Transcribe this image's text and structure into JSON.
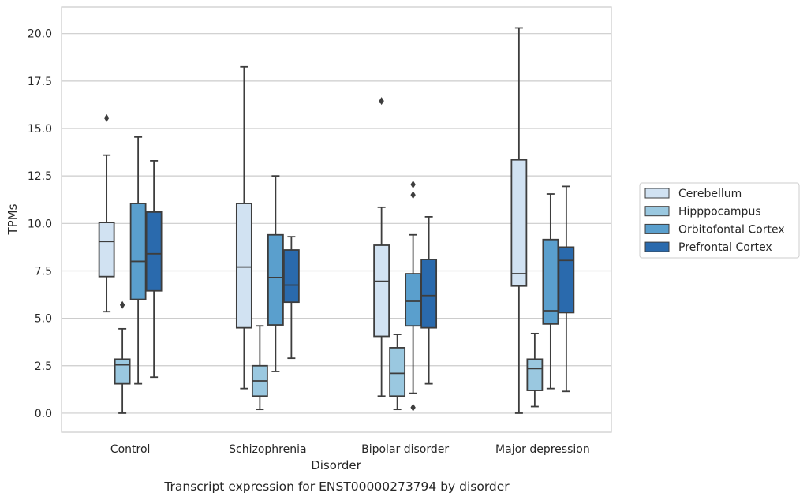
{
  "chart_data": {
    "type": "boxplot",
    "title": "",
    "caption": "Transcript expression for ENST00000273794 by disorder",
    "xlabel": "Disorder",
    "ylabel": "TPMs",
    "ylim": [
      -1.0,
      21.4
    ],
    "yticks": [
      0.0,
      2.5,
      5.0,
      7.5,
      10.0,
      12.5,
      15.0,
      17.5,
      20.0
    ],
    "ytick_labels": [
      "0.0",
      "2.5",
      "5.0",
      "7.5",
      "10.0",
      "12.5",
      "15.0",
      "17.5",
      "20.0"
    ],
    "categories": [
      "Control",
      "Schizophrenia",
      "Bipolar disorder",
      "Major depression"
    ],
    "grid": "horizontal",
    "legend_position": "right",
    "series": [
      {
        "name": "Cerebellum",
        "color": "#d1e2f2",
        "boxes": [
          {
            "whislo": 5.35,
            "q1": 7.2,
            "med": 9.05,
            "q3": 10.05,
            "whishi": 13.6,
            "fliers": [
              15.55
            ]
          },
          {
            "whislo": 1.3,
            "q1": 4.5,
            "med": 7.7,
            "q3": 11.05,
            "whishi": 18.25,
            "fliers": []
          },
          {
            "whislo": 0.9,
            "q1": 4.05,
            "med": 6.95,
            "q3": 8.85,
            "whishi": 10.85,
            "fliers": [
              16.45
            ]
          },
          {
            "whislo": 0.0,
            "q1": 6.7,
            "med": 7.35,
            "q3": 13.35,
            "whishi": 20.3,
            "fliers": []
          }
        ]
      },
      {
        "name": "Hipppocampus",
        "color": "#9ac8e0",
        "boxes": [
          {
            "whislo": 0.0,
            "q1": 1.55,
            "med": 2.55,
            "q3": 2.85,
            "whishi": 4.45,
            "fliers": [
              5.7
            ]
          },
          {
            "whislo": 0.2,
            "q1": 0.9,
            "med": 1.7,
            "q3": 2.5,
            "whishi": 4.6,
            "fliers": []
          },
          {
            "whislo": 0.2,
            "q1": 0.9,
            "med": 2.1,
            "q3": 3.45,
            "whishi": 4.15,
            "fliers": []
          },
          {
            "whislo": 0.35,
            "q1": 1.2,
            "med": 2.35,
            "q3": 2.85,
            "whishi": 4.2,
            "fliers": []
          }
        ]
      },
      {
        "name": "Orbitofontal Cortex",
        "color": "#5a9fcd",
        "boxes": [
          {
            "whislo": 1.55,
            "q1": 6.0,
            "med": 8.0,
            "q3": 11.05,
            "whishi": 14.55,
            "fliers": []
          },
          {
            "whislo": 2.2,
            "q1": 4.65,
            "med": 7.15,
            "q3": 9.4,
            "whishi": 12.5,
            "fliers": []
          },
          {
            "whislo": 1.05,
            "q1": 4.6,
            "med": 5.9,
            "q3": 7.35,
            "whishi": 9.4,
            "fliers": [
              12.05,
              11.5,
              0.3
            ]
          },
          {
            "whislo": 1.3,
            "q1": 4.7,
            "med": 5.4,
            "q3": 9.15,
            "whishi": 11.55,
            "fliers": []
          }
        ]
      },
      {
        "name": "Prefrontal Cortex",
        "color": "#2a6aad",
        "boxes": [
          {
            "whislo": 1.9,
            "q1": 6.45,
            "med": 8.4,
            "q3": 10.6,
            "whishi": 13.3,
            "fliers": []
          },
          {
            "whislo": 2.9,
            "q1": 5.85,
            "med": 6.75,
            "q3": 8.6,
            "whishi": 9.3,
            "fliers": []
          },
          {
            "whislo": 1.55,
            "q1": 4.5,
            "med": 6.2,
            "q3": 8.1,
            "whishi": 10.35,
            "fliers": []
          },
          {
            "whislo": 1.15,
            "q1": 5.3,
            "med": 8.05,
            "q3": 8.75,
            "whishi": 11.95,
            "fliers": []
          }
        ]
      }
    ]
  }
}
